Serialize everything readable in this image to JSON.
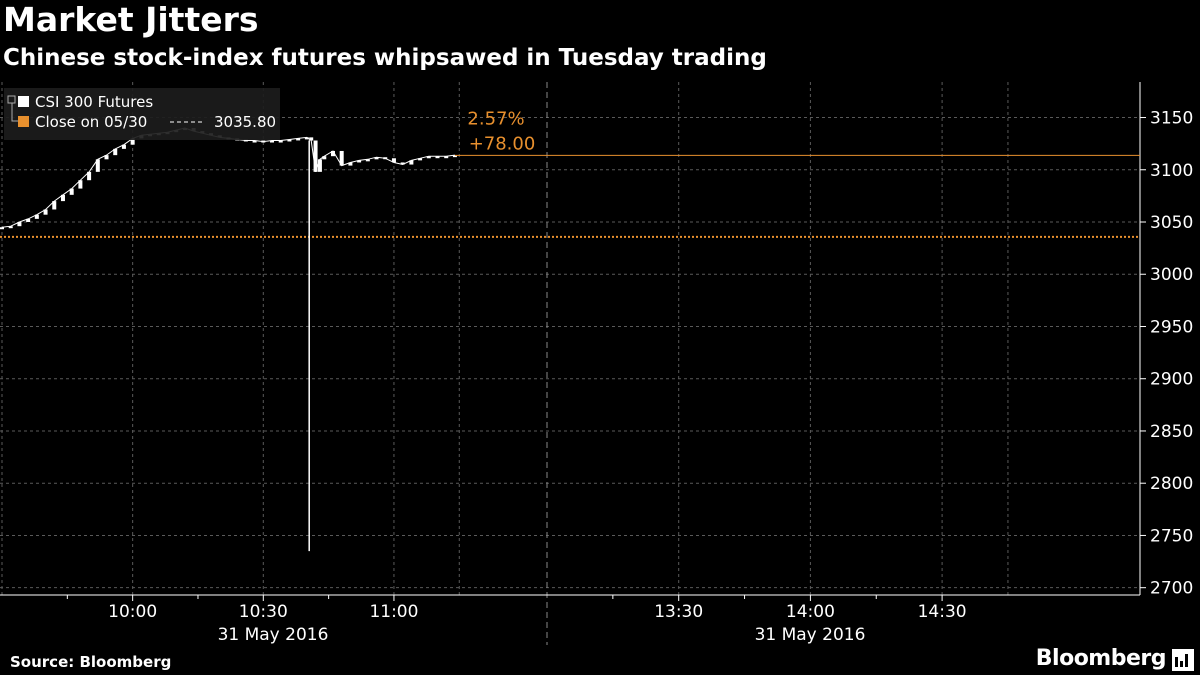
{
  "header": {
    "title": "Market Jitters",
    "subtitle": "Chinese stock-index futures whipsawed in Tuesday trading"
  },
  "footer": {
    "source": "Source: Bloomberg",
    "brand": "Bloomberg"
  },
  "colors": {
    "background": "#000000",
    "series": "#ffffff",
    "close_line": "#e8902e",
    "grid": "#5a5a5a"
  },
  "chart_data": {
    "type": "line",
    "title": "Market Jitters",
    "subtitle": "Chinese stock-index futures whipsawed in Tuesday trading",
    "legend": {
      "position": "top-left",
      "items": [
        {
          "label": "CSI 300 Futures",
          "value": "",
          "color": "#ffffff"
        },
        {
          "label": "Close on 05/30",
          "value": "3035.80",
          "color": "#e8902e"
        }
      ]
    },
    "annotation": {
      "pct": "2.57%",
      "change": "+78.00",
      "level": 3113.8
    },
    "close_level": 3035.8,
    "y_ticks": [
      3150,
      3100,
      3050,
      3000,
      2950,
      2900,
      2850,
      2800,
      2750,
      2700
    ],
    "ylim": [
      2693,
      3184
    ],
    "x_ticks": [
      "10:00",
      "10:30",
      "11:00",
      "13:30",
      "14:00",
      "14:30"
    ],
    "date_labels": [
      "31 May 2016",
      "31 May 2016"
    ],
    "grid": true,
    "series": [
      {
        "name": "CSI 300 Futures",
        "x": [
          "09:30",
          "09:32",
          "09:34",
          "09:36",
          "09:38",
          "09:40",
          "09:42",
          "09:44",
          "09:46",
          "09:48",
          "09:50",
          "09:52",
          "09:54",
          "09:56",
          "09:58",
          "10:00",
          "10:02",
          "10:04",
          "10:06",
          "10:08",
          "10:10",
          "10:12",
          "10:14",
          "10:16",
          "10:18",
          "10:20",
          "10:22",
          "10:24",
          "10:26",
          "10:28",
          "10:30",
          "10:32",
          "10:34",
          "10:36",
          "10:38",
          "10:40",
          "10:41",
          "10:42",
          "10:43",
          "10:44",
          "10:46",
          "10:48",
          "10:50",
          "10:52",
          "10:54",
          "10:56",
          "10:58",
          "11:00",
          "11:02",
          "11:04",
          "11:06",
          "11:08",
          "11:10",
          "11:12",
          "11:14"
        ],
        "values": [
          3045,
          3046,
          3050,
          3053,
          3057,
          3062,
          3070,
          3076,
          3082,
          3090,
          3098,
          3110,
          3114,
          3120,
          3124,
          3130,
          3133,
          3134,
          3135,
          3136,
          3138,
          3140,
          3137,
          3135,
          3133,
          3131,
          3130,
          3129,
          3128,
          3128,
          3127,
          3128,
          3128,
          3129,
          3130,
          3131,
          3128,
          3098,
          3110,
          3113,
          3118,
          3104,
          3107,
          3109,
          3110,
          3112,
          3111,
          3107,
          3105,
          3109,
          3111,
          3113,
          3113,
          3113,
          3114
        ]
      }
    ],
    "wick": {
      "x": "10:41",
      "low": 2735
    }
  }
}
